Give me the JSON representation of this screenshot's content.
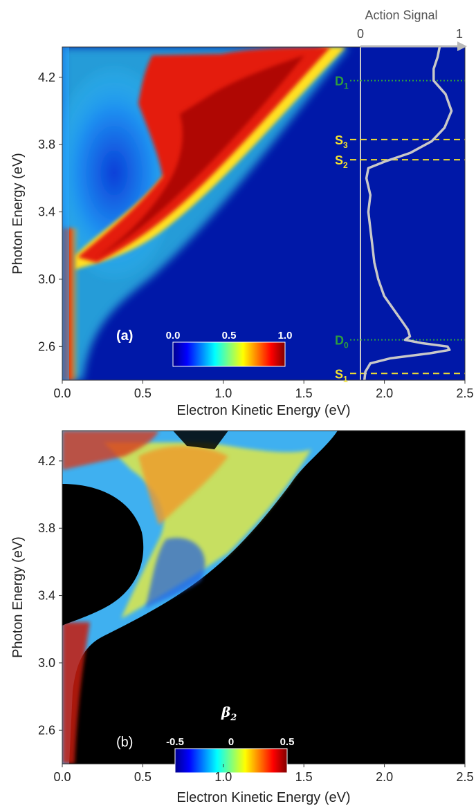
{
  "chart_data": [
    {
      "panel": "(a)",
      "type": "heatmap",
      "xlabel": "Electron Kinetic Energy (eV)",
      "ylabel": "Photon Energy (eV)",
      "xlim": [
        0,
        2.5
      ],
      "ylim": [
        2.4,
        4.38
      ],
      "xticks": [
        "0.0",
        "0.5",
        "1.0",
        "1.5",
        "2.0",
        "2.5"
      ],
      "yticks": [
        "2.6",
        "3.0",
        "3.4",
        "3.8",
        "4.2"
      ],
      "colorbar": {
        "ticks": [
          "0.0",
          "0.5",
          "1.0"
        ],
        "range": [
          0,
          1
        ],
        "colormap": "jet"
      },
      "action_spectrum": {
        "title": "Action Signal",
        "ticks": [
          "0",
          "1"
        ],
        "color": "#c8c8c8",
        "points": [
          [
            2.4,
            0.04
          ],
          [
            2.45,
            0.05
          ],
          [
            2.5,
            0.1
          ],
          [
            2.53,
            0.3
          ],
          [
            2.56,
            0.7
          ],
          [
            2.58,
            0.9
          ],
          [
            2.6,
            0.88
          ],
          [
            2.62,
            0.62
          ],
          [
            2.64,
            0.45
          ],
          [
            2.66,
            0.5
          ],
          [
            2.7,
            0.48
          ],
          [
            2.75,
            0.42
          ],
          [
            2.8,
            0.36
          ],
          [
            2.9,
            0.24
          ],
          [
            3.0,
            0.18
          ],
          [
            3.1,
            0.14
          ],
          [
            3.2,
            0.12
          ],
          [
            3.3,
            0.1
          ],
          [
            3.4,
            0.08
          ],
          [
            3.5,
            0.1
          ],
          [
            3.6,
            0.06
          ],
          [
            3.66,
            0.08
          ],
          [
            3.7,
            0.25
          ],
          [
            3.75,
            0.5
          ],
          [
            3.82,
            0.72
          ],
          [
            3.9,
            0.85
          ],
          [
            4.0,
            0.92
          ],
          [
            4.1,
            0.86
          ],
          [
            4.18,
            0.74
          ],
          [
            4.25,
            0.74
          ],
          [
            4.32,
            0.78
          ],
          [
            4.38,
            0.8
          ]
        ]
      },
      "states": [
        {
          "name": "D",
          "sub": "1",
          "y": 4.18,
          "color": "#2e9e3e",
          "style": "dotted"
        },
        {
          "name": "S",
          "sub": "3",
          "y": 3.83,
          "color": "#f2e030",
          "style": "dashed"
        },
        {
          "name": "S",
          "sub": "2",
          "y": 3.71,
          "color": "#f2e030",
          "style": "dashed"
        },
        {
          "name": "D",
          "sub": "0",
          "y": 2.64,
          "color": "#2e9e3e",
          "style": "dotted"
        },
        {
          "name": "S",
          "sub": "1",
          "y": 2.44,
          "color": "#f2e030",
          "style": "dashed"
        }
      ]
    },
    {
      "panel": "(b)",
      "type": "heatmap",
      "xlabel": "Electron Kinetic Energy (eV)",
      "ylabel": "Photon Energy (eV)",
      "xlim": [
        0,
        2.5
      ],
      "ylim": [
        2.4,
        4.38
      ],
      "xticks": [
        "0.0",
        "0.5",
        "1.0",
        "1.5",
        "2.0",
        "2.5"
      ],
      "yticks": [
        "2.6",
        "3.0",
        "3.4",
        "3.8",
        "4.2"
      ],
      "colorbar": {
        "title": "β",
        "title_sub": "2",
        "ticks": [
          "-0.5",
          "0",
          "0.5"
        ],
        "range": [
          -0.5,
          0.5
        ],
        "colormap": "jet"
      }
    }
  ]
}
